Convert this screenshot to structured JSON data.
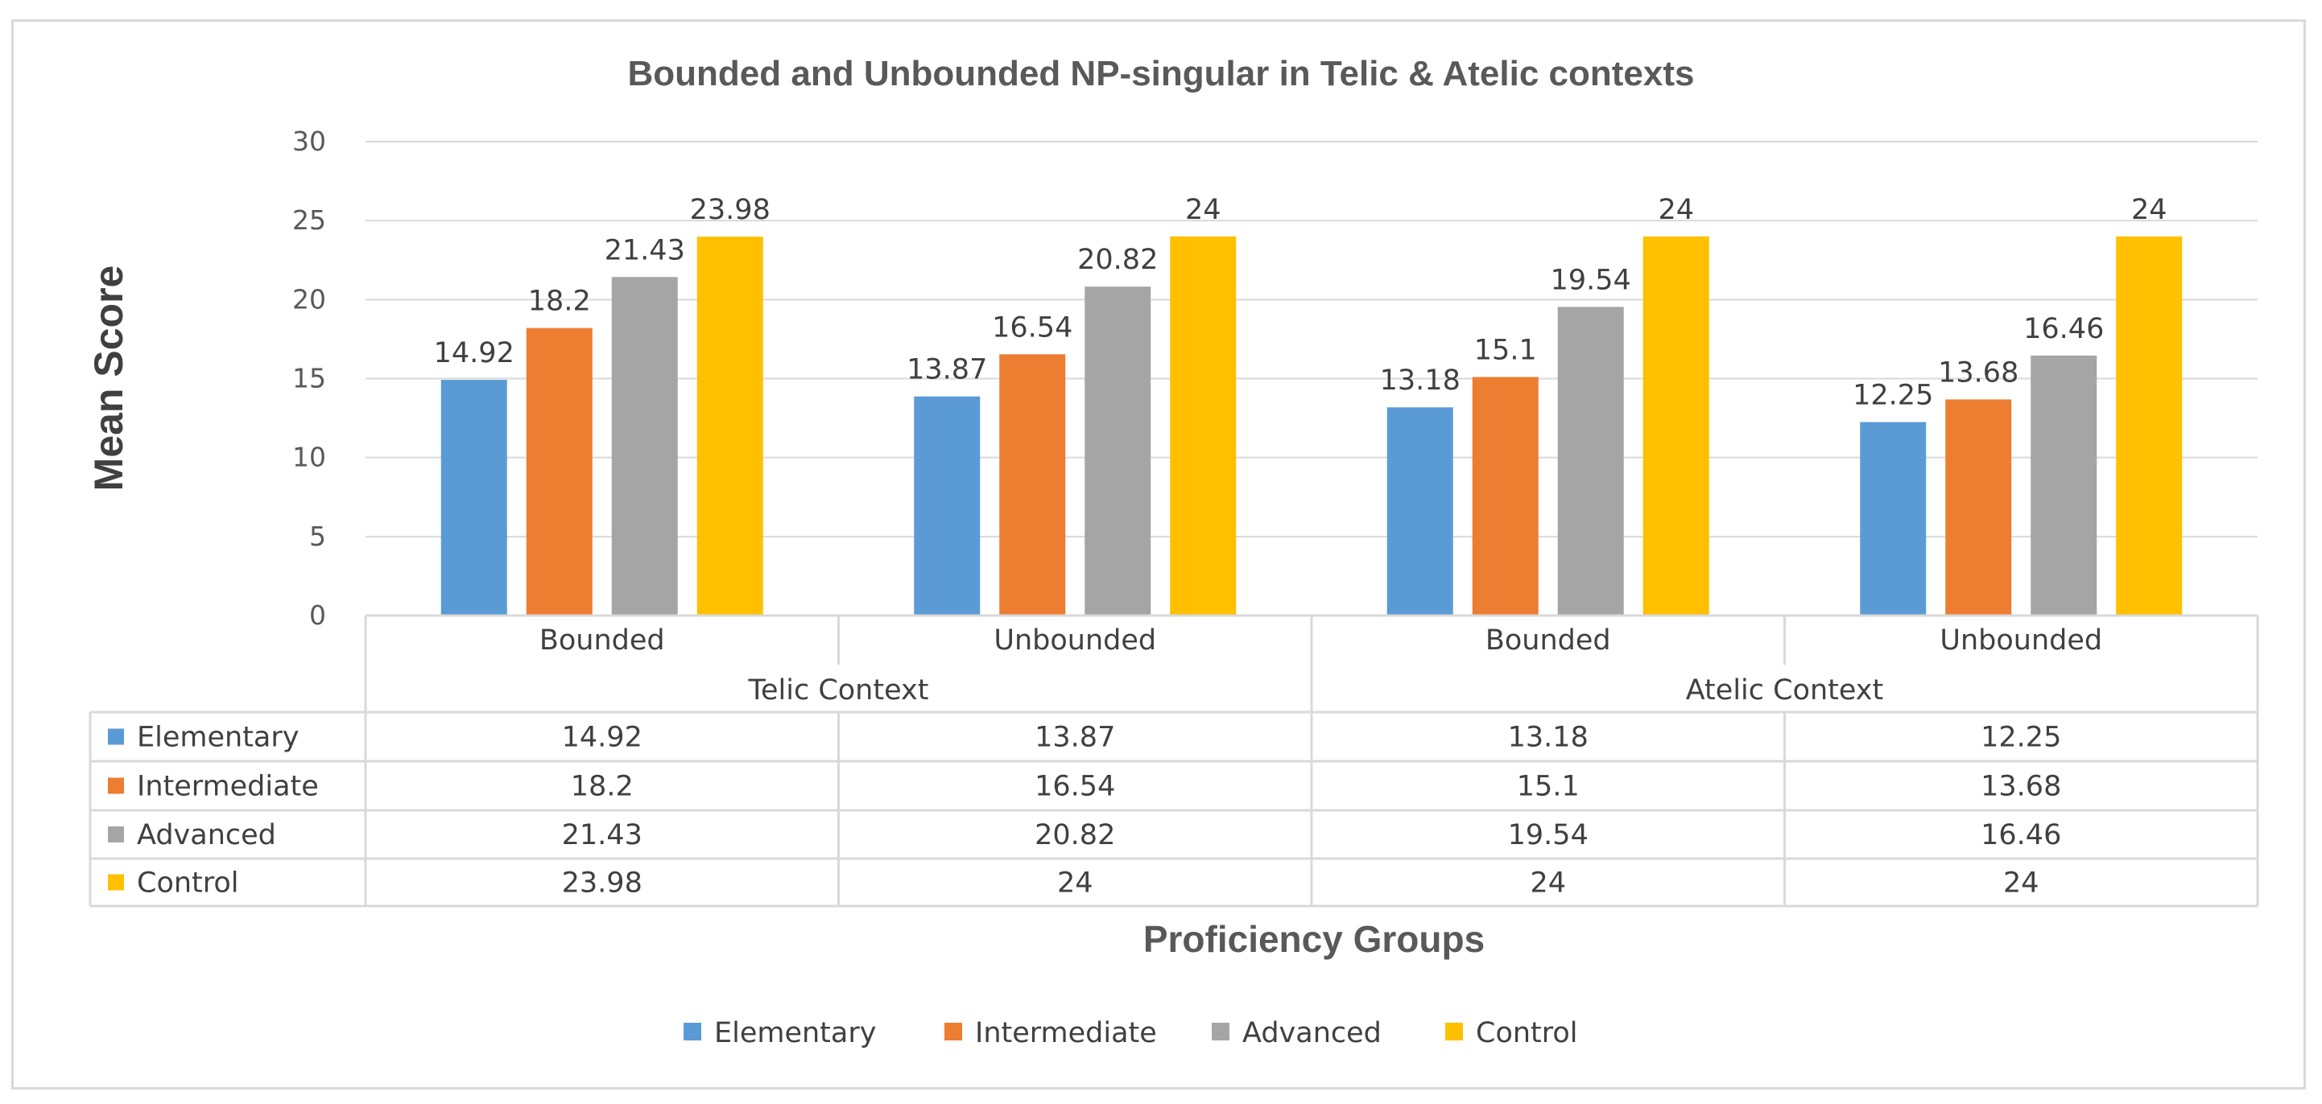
{
  "chart_data": {
    "type": "bar",
    "title": "Bounded and Unbounded NP-singular in Telic & Atelic contexts",
    "xlabel": "Proficiency Groups",
    "ylabel": "Mean Score",
    "ylim": [
      0,
      30
    ],
    "yticks": [
      "0",
      "5",
      "10",
      "15",
      "20",
      "25",
      "30"
    ],
    "grid": true,
    "legend_position": "bottom",
    "categories": [
      "Bounded",
      "Unbounded",
      "Bounded",
      "Unbounded"
    ],
    "category_groups": [
      {
        "label": "Telic Context",
        "span": 2
      },
      {
        "label": "Atelic Context",
        "span": 2
      }
    ],
    "series": [
      {
        "name": "Elementary",
        "color": "#5b9bd5",
        "values": [
          14.92,
          13.87,
          13.18,
          12.25
        ],
        "labels": [
          "14.92",
          "13.87",
          "13.18",
          "12.25"
        ]
      },
      {
        "name": "Intermediate",
        "color": "#ed7d31",
        "values": [
          18.2,
          16.54,
          15.1,
          13.68
        ],
        "labels": [
          "18.2",
          "16.54",
          "15.1",
          "13.68"
        ]
      },
      {
        "name": "Advanced",
        "color": "#a5a5a5",
        "values": [
          21.43,
          20.82,
          19.54,
          16.46
        ],
        "labels": [
          "21.43",
          "20.82",
          "19.54",
          "16.46"
        ]
      },
      {
        "name": "Control",
        "color": "#ffc000",
        "values": [
          23.98,
          24,
          24,
          24
        ],
        "labels": [
          "23.98",
          "24",
          "24",
          "24"
        ]
      }
    ]
  }
}
